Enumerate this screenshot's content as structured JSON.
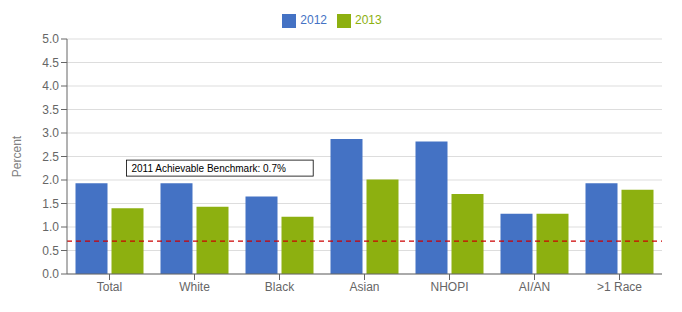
{
  "chart_data": {
    "type": "bar",
    "categories": [
      "Total",
      "White",
      "Black",
      "Asian",
      "NHOPI",
      "AI/AN",
      ">1 Race"
    ],
    "series": [
      {
        "name": "2012",
        "color": "#4472C4",
        "values": [
          1.93,
          1.93,
          1.65,
          2.87,
          2.82,
          1.28,
          1.93
        ]
      },
      {
        "name": "2013",
        "color": "#8DB010",
        "values": [
          1.4,
          1.43,
          1.22,
          2.01,
          1.7,
          1.28,
          1.79
        ]
      }
    ],
    "ylabel": "Percent",
    "ylim": [
      0,
      5.0
    ],
    "yticks": [
      {
        "value": 0,
        "label": "0.0"
      },
      0.5,
      {
        "value": 1,
        "label": "1.0"
      },
      1.5,
      {
        "value": 2,
        "label": "2.0"
      },
      2.5,
      {
        "value": 3,
        "label": "3.0"
      },
      3.5,
      {
        "value": 4,
        "label": "4.0"
      },
      4.5,
      {
        "value": 5,
        "label": "5.0"
      }
    ],
    "grid": true,
    "legend": "top",
    "reference_lines": [
      {
        "value": 0.7,
        "color": "#CC0000",
        "line_style": "dashed"
      }
    ],
    "annotations": [
      "2011 Achievable Benchmark: 0.7%"
    ]
  }
}
